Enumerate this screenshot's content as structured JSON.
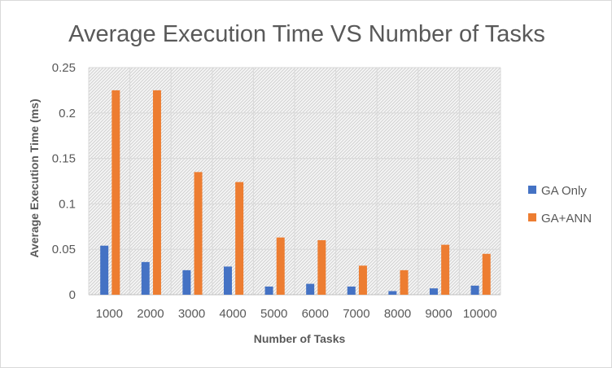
{
  "chart_data": {
    "type": "bar",
    "title": "Average Execution Time VS Number of Tasks",
    "xlabel": "Number of Tasks",
    "ylabel": "Average Execution Time  (ms)",
    "categories": [
      "1000",
      "2000",
      "3000",
      "4000",
      "5000",
      "6000",
      "7000",
      "8000",
      "9000",
      "10000"
    ],
    "series": [
      {
        "name": "GA Only",
        "color": "#4472C4",
        "values": [
          0.054,
          0.036,
          0.027,
          0.031,
          0.009,
          0.012,
          0.009,
          0.004,
          0.007,
          0.01
        ]
      },
      {
        "name": "GA+ANN",
        "color": "#ED7D31",
        "values": [
          0.225,
          0.225,
          0.135,
          0.124,
          0.063,
          0.06,
          0.032,
          0.027,
          0.055,
          0.045
        ]
      }
    ],
    "ylim": [
      0,
      0.25
    ],
    "yticks": [
      "0",
      "0.05",
      "0.1",
      "0.15",
      "0.2",
      "0.25"
    ],
    "ytick_values": [
      0,
      0.05,
      0.1,
      0.15,
      0.2,
      0.25
    ],
    "grid": true,
    "plot_fill": "hatched",
    "legend_position": "right"
  }
}
